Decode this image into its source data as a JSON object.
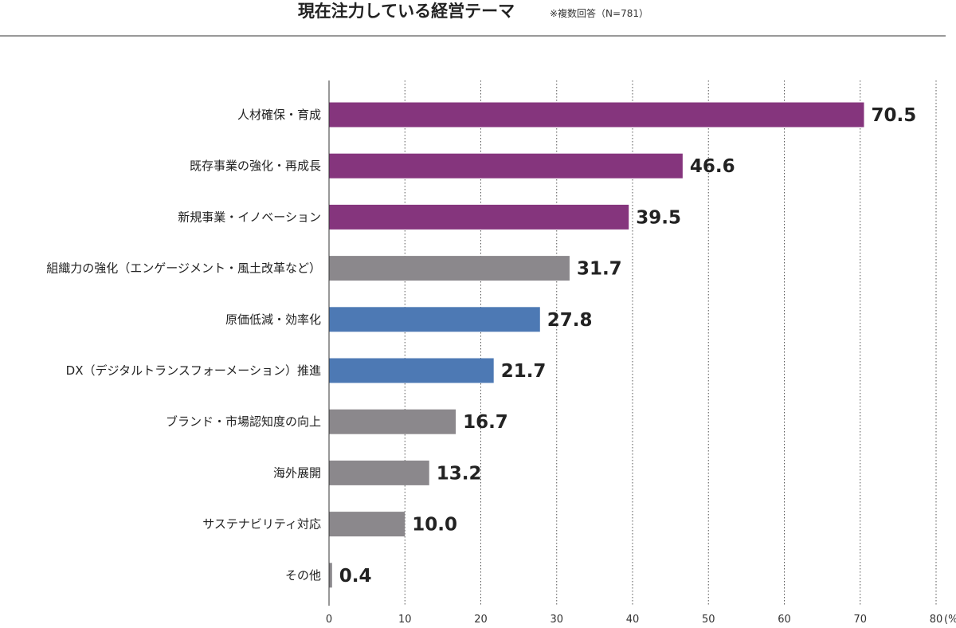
{
  "chart_data": {
    "type": "bar",
    "orientation": "horizontal",
    "title": "現在注力している経営テーマ",
    "note": "※複数回答（N=781）",
    "categories": [
      "人材確保・育成",
      "既存事業の強化・再成長",
      "新規事業・イノベーション",
      "組織力の強化（エンゲージメント・風土改革など）",
      "原価低減・効率化",
      "DX（デジタルトランスフォーメーション）推進",
      "ブランド・市場認知度の向上",
      "海外展開",
      "サステナビリティ対応",
      "その他"
    ],
    "values": [
      70.5,
      46.6,
      39.5,
      31.7,
      27.8,
      21.7,
      16.7,
      13.2,
      10.0,
      0.4
    ],
    "value_labels": [
      "70.5",
      "46.6",
      "39.5",
      "31.7",
      "27.8",
      "21.7",
      "16.7",
      "13.2",
      "10.0",
      "0.4"
    ],
    "bar_colors": [
      "#85357d",
      "#85357d",
      "#85357d",
      "#8b888c",
      "#4d79b4",
      "#4d79b4",
      "#8b888c",
      "#8b888c",
      "#8b888c",
      "#8b888c"
    ],
    "xlim": [
      0,
      80
    ],
    "xticks": [
      "0",
      "10",
      "20",
      "30",
      "40",
      "50",
      "60",
      "70",
      "80"
    ],
    "x_unit": "(%)",
    "grid": "vertical-dotted",
    "xlabel": "",
    "ylabel": ""
  }
}
